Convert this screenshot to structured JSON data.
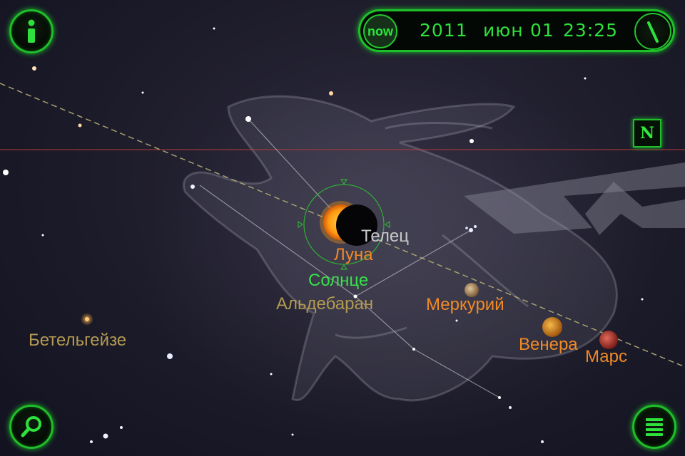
{
  "top_bar": {
    "info_icon": "info-icon",
    "now_label": "now",
    "year": "2011",
    "month": "июн",
    "day": "01",
    "time": "23:25",
    "dial_icon": "time-dial-icon"
  },
  "compass": {
    "north_label": "N"
  },
  "bottom_bar": {
    "search_icon": "search-icon",
    "menu_icon": "menu-list-icon"
  },
  "sky": {
    "constellation": "Телец",
    "moon": "Луна",
    "sun": "Солнце",
    "aldebaran": "Альдебаран",
    "betelgeuse": "Бетельгейзе",
    "mercury": "Меркурий",
    "venus": "Венера",
    "mars": "Марс"
  },
  "colors": {
    "ui_green": "#2fe13c",
    "planet_label": "#f08a28",
    "sun_label": "#36e24a",
    "star_label": "#b39a52",
    "constellation_label": "#c9c9c9",
    "horizon_line": "#b83a3a",
    "ecliptic": "#a8a070"
  }
}
